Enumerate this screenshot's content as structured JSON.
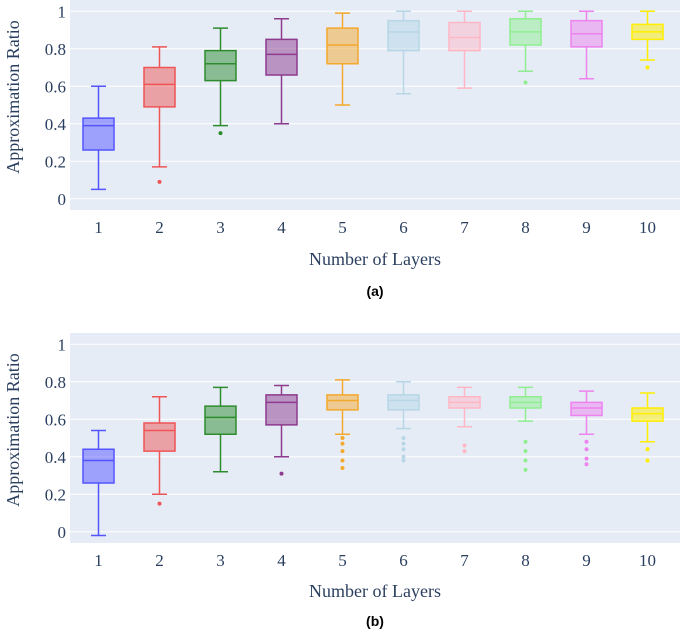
{
  "chart_data": [
    {
      "type": "box",
      "panel_label": "(a)",
      "xlabel": "Number of Layers",
      "ylabel": "Approximation Ratio",
      "categories": [
        "1",
        "2",
        "3",
        "4",
        "5",
        "6",
        "7",
        "8",
        "9",
        "10"
      ],
      "yticks": [
        "0",
        "0.2",
        "0.4",
        "0.6",
        "0.8",
        "1"
      ],
      "ylim": [
        -0.06,
        1.06
      ],
      "grid": true,
      "boxes": [
        {
          "category": "1",
          "color": "#5555ff",
          "min": 0.05,
          "q1": 0.26,
          "median": 0.39,
          "q3": 0.43,
          "max": 0.6,
          "outliers": []
        },
        {
          "category": "2",
          "color": "#ef5555",
          "min": 0.17,
          "q1": 0.49,
          "median": 0.61,
          "q3": 0.7,
          "max": 0.81,
          "outliers": [
            0.09
          ]
        },
        {
          "category": "3",
          "color": "#2e8b2e",
          "min": 0.39,
          "q1": 0.63,
          "median": 0.72,
          "q3": 0.79,
          "max": 0.91,
          "outliers": [
            0.35
          ]
        },
        {
          "category": "4",
          "color": "#8e3a8e",
          "min": 0.4,
          "q1": 0.66,
          "median": 0.77,
          "q3": 0.85,
          "max": 0.96,
          "outliers": []
        },
        {
          "category": "5",
          "color": "#f4a82c",
          "min": 0.5,
          "q1": 0.72,
          "median": 0.82,
          "q3": 0.91,
          "max": 0.99,
          "outliers": []
        },
        {
          "category": "6",
          "color": "#b7d6e6",
          "min": 0.56,
          "q1": 0.79,
          "median": 0.89,
          "q3": 0.95,
          "max": 1.0,
          "outliers": []
        },
        {
          "category": "7",
          "color": "#ffb7c5",
          "min": 0.59,
          "q1": 0.79,
          "median": 0.86,
          "q3": 0.94,
          "max": 1.0,
          "outliers": []
        },
        {
          "category": "8",
          "color": "#90ee90",
          "min": 0.68,
          "q1": 0.82,
          "median": 0.89,
          "q3": 0.96,
          "max": 1.0,
          "outliers": [
            0.62
          ]
        },
        {
          "category": "9",
          "color": "#ee82ee",
          "min": 0.64,
          "q1": 0.81,
          "median": 0.88,
          "q3": 0.95,
          "max": 1.0,
          "outliers": []
        },
        {
          "category": "10",
          "color": "#ffee00",
          "min": 0.74,
          "q1": 0.85,
          "median": 0.89,
          "q3": 0.93,
          "max": 1.0,
          "outliers": [
            0.7
          ]
        }
      ]
    },
    {
      "type": "box",
      "panel_label": "(b)",
      "xlabel": "Number of Layers",
      "ylabel": "Approximation Ratio",
      "categories": [
        "1",
        "2",
        "3",
        "4",
        "5",
        "6",
        "7",
        "8",
        "9",
        "10"
      ],
      "yticks": [
        "0",
        "0.2",
        "0.4",
        "0.6",
        "0.8",
        "1"
      ],
      "ylim": [
        -0.06,
        1.06
      ],
      "grid": true,
      "boxes": [
        {
          "category": "1",
          "color": "#5555ff",
          "min": -0.02,
          "q1": 0.26,
          "median": 0.38,
          "q3": 0.44,
          "max": 0.54,
          "outliers": []
        },
        {
          "category": "2",
          "color": "#ef5555",
          "min": 0.2,
          "q1": 0.43,
          "median": 0.54,
          "q3": 0.58,
          "max": 0.72,
          "outliers": [
            0.15
          ]
        },
        {
          "category": "3",
          "color": "#2e8b2e",
          "min": 0.32,
          "q1": 0.52,
          "median": 0.61,
          "q3": 0.67,
          "max": 0.77,
          "outliers": []
        },
        {
          "category": "4",
          "color": "#8e3a8e",
          "min": 0.4,
          "q1": 0.57,
          "median": 0.69,
          "q3": 0.73,
          "max": 0.78,
          "outliers": [
            0.31
          ]
        },
        {
          "category": "5",
          "color": "#f4a82c",
          "min": 0.52,
          "q1": 0.65,
          "median": 0.7,
          "q3": 0.73,
          "max": 0.81,
          "outliers": [
            0.5,
            0.47,
            0.43,
            0.38,
            0.34
          ]
        },
        {
          "category": "6",
          "color": "#b7d6e6",
          "min": 0.55,
          "q1": 0.65,
          "median": 0.7,
          "q3": 0.73,
          "max": 0.8,
          "outliers": [
            0.5,
            0.47,
            0.44,
            0.4,
            0.38
          ]
        },
        {
          "category": "7",
          "color": "#ffb7c5",
          "min": 0.56,
          "q1": 0.66,
          "median": 0.69,
          "q3": 0.72,
          "max": 0.77,
          "outliers": [
            0.46,
            0.43
          ]
        },
        {
          "category": "8",
          "color": "#90ee90",
          "min": 0.59,
          "q1": 0.66,
          "median": 0.69,
          "q3": 0.72,
          "max": 0.77,
          "outliers": [
            0.48,
            0.43,
            0.38,
            0.33
          ]
        },
        {
          "category": "9",
          "color": "#ee82ee",
          "min": 0.52,
          "q1": 0.62,
          "median": 0.66,
          "q3": 0.69,
          "max": 0.75,
          "outliers": [
            0.48,
            0.44,
            0.39,
            0.36
          ]
        },
        {
          "category": "10",
          "color": "#ffee00",
          "min": 0.48,
          "q1": 0.59,
          "median": 0.63,
          "q3": 0.66,
          "max": 0.74,
          "outliers": [
            0.44,
            0.38
          ]
        }
      ]
    }
  ]
}
